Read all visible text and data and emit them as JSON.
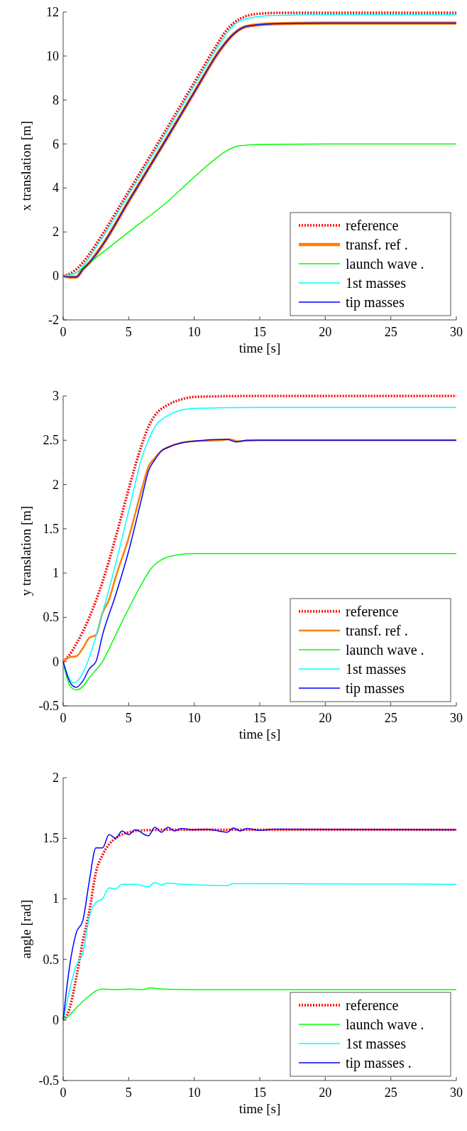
{
  "chart_data": [
    {
      "type": "line",
      "xlabel": "time [s]",
      "ylabel": "x translation [m]",
      "xlim": [
        0,
        30
      ],
      "ylim": [
        -2,
        12
      ],
      "xticks": [
        0,
        5,
        10,
        15,
        20,
        25,
        30
      ],
      "yticks": [
        -2,
        0,
        2,
        4,
        6,
        8,
        10,
        12
      ],
      "grid": false,
      "legend": "bottom right",
      "series": [
        {
          "name": "reference",
          "color": "#ff0000",
          "line_style": "dotted",
          "x": [
            0,
            0.5,
            1,
            2,
            3,
            5,
            8,
            10,
            11.5,
            12.5,
            13.5,
            15,
            17,
            20,
            30
          ],
          "values": [
            0,
            0.1,
            0.3,
            1.0,
            1.9,
            3.85,
            6.8,
            8.8,
            10.3,
            11.2,
            11.7,
            11.93,
            11.97,
            11.97,
            11.97
          ]
        },
        {
          "name": "transf. ref .",
          "color": "#ff7f00",
          "line_style": "solid",
          "x": [
            0,
            0.5,
            1,
            1.5,
            2,
            3,
            5,
            8,
            10,
            12,
            13,
            14,
            16,
            20,
            30
          ],
          "values": [
            0,
            -0.05,
            -0.05,
            0.3,
            0.6,
            1.4,
            3.4,
            6.35,
            8.35,
            10.3,
            11.0,
            11.35,
            11.47,
            11.5,
            11.5
          ]
        },
        {
          "name": "launch wave .",
          "color": "#00ff00",
          "line_style": "solid",
          "x": [
            0,
            1,
            2,
            5,
            8,
            10,
            12,
            12.5,
            13.5,
            15,
            20,
            30
          ],
          "values": [
            0,
            0.15,
            0.6,
            2.0,
            3.4,
            4.5,
            5.5,
            5.7,
            5.92,
            5.98,
            6.0,
            6.0
          ]
        },
        {
          "name": "1st masses",
          "color": "#00ffff",
          "line_style": "solid",
          "x": [
            0,
            1,
            2,
            3,
            5,
            8,
            10,
            12,
            13,
            14,
            16,
            20,
            30
          ],
          "values": [
            0,
            0.15,
            0.85,
            1.75,
            3.7,
            6.65,
            8.65,
            10.6,
            11.4,
            11.7,
            11.85,
            11.88,
            11.88
          ]
        },
        {
          "name": "tip masses",
          "color": "#0000ff",
          "line_style": "solid",
          "x": [
            0,
            0.5,
            1,
            1.5,
            2,
            3,
            5,
            8,
            10,
            12,
            13,
            14,
            16,
            20,
            30
          ],
          "values": [
            0,
            -0.05,
            -0.05,
            0.3,
            0.6,
            1.4,
            3.4,
            6.35,
            8.35,
            10.3,
            11.0,
            11.35,
            11.47,
            11.5,
            11.5
          ]
        }
      ]
    },
    {
      "type": "line",
      "xlabel": "time [s]",
      "ylabel": "y translation [m]",
      "xlim": [
        0,
        30
      ],
      "ylim": [
        -0.5,
        3
      ],
      "xticks": [
        0,
        5,
        10,
        15,
        20,
        25,
        30
      ],
      "yticks": [
        -0.5,
        0,
        0.5,
        1,
        1.5,
        2,
        2.5,
        3
      ],
      "grid": false,
      "legend": "bottom right",
      "series": [
        {
          "name": "reference",
          "color": "#ff0000",
          "line_style": "dotted",
          "x": [
            0,
            0.5,
            1,
            2,
            3,
            4,
            5,
            6,
            6.5,
            7,
            8,
            9,
            10,
            15,
            30
          ],
          "values": [
            0,
            0.08,
            0.2,
            0.5,
            0.9,
            1.4,
            1.95,
            2.45,
            2.65,
            2.78,
            2.9,
            2.96,
            2.99,
            3.0,
            3.0
          ]
        },
        {
          "name": "transf. ref .",
          "color": "#ff7f00",
          "line_style": "solid",
          "x": [
            0,
            0.5,
            1,
            1.5,
            2,
            2.5,
            3,
            3.5,
            4,
            5,
            6,
            6.5,
            7,
            7.5,
            8,
            9,
            10,
            12,
            12.7,
            13.3,
            15,
            30
          ],
          "values": [
            0,
            0.05,
            0.06,
            0.15,
            0.27,
            0.3,
            0.55,
            0.7,
            0.95,
            1.4,
            1.95,
            2.2,
            2.3,
            2.38,
            2.42,
            2.47,
            2.49,
            2.5,
            2.51,
            2.49,
            2.5,
            2.5
          ]
        },
        {
          "name": "launch wave .",
          "color": "#00ff00",
          "line_style": "solid",
          "x": [
            0,
            0.5,
            1,
            1.5,
            2,
            3,
            4,
            5,
            6,
            6.7,
            7.5,
            8.5,
            10,
            30
          ],
          "values": [
            0,
            -0.27,
            -0.32,
            -0.28,
            -0.18,
            0.0,
            0.3,
            0.6,
            0.88,
            1.05,
            1.15,
            1.2,
            1.22,
            1.22
          ]
        },
        {
          "name": "1st masses",
          "color": "#00ffff",
          "line_style": "solid",
          "x": [
            0,
            0.5,
            0.8,
            1.2,
            2,
            3,
            4,
            5,
            6,
            6.5,
            7,
            8,
            9,
            10,
            15,
            30
          ],
          "values": [
            0,
            -0.2,
            -0.24,
            -0.2,
            0.05,
            0.55,
            1.1,
            1.7,
            2.3,
            2.5,
            2.65,
            2.78,
            2.84,
            2.86,
            2.87,
            2.87
          ]
        },
        {
          "name": "tip masses",
          "color": "#0000ff",
          "line_style": "solid",
          "x": [
            0,
            0.3,
            0.7,
            1,
            1.5,
            2,
            2.5,
            3,
            4,
            5,
            6,
            6.5,
            7,
            7.5,
            8,
            9,
            10,
            12.5,
            13.2,
            14,
            30
          ],
          "values": [
            0,
            -0.15,
            -0.27,
            -0.29,
            -0.22,
            -0.08,
            0.0,
            0.3,
            0.75,
            1.25,
            1.85,
            2.15,
            2.28,
            2.38,
            2.42,
            2.47,
            2.49,
            2.51,
            2.48,
            2.5,
            2.5
          ]
        }
      ]
    },
    {
      "type": "line",
      "xlabel": "time [s]",
      "ylabel": "angle [rad]",
      "xlim": [
        0,
        30
      ],
      "ylim": [
        -0.5,
        2
      ],
      "xticks": [
        0,
        5,
        10,
        15,
        20,
        25,
        30
      ],
      "yticks": [
        -0.5,
        0,
        0.5,
        1,
        1.5,
        2
      ],
      "grid": false,
      "legend": "bottom right",
      "series": [
        {
          "name": "reference",
          "color": "#ff0000",
          "line_style": "dotted",
          "x": [
            0,
            0.5,
            1,
            1.5,
            2,
            2.5,
            3,
            3.5,
            4,
            5,
            6,
            8,
            30
          ],
          "values": [
            0,
            0.1,
            0.35,
            0.65,
            0.9,
            1.22,
            1.36,
            1.45,
            1.5,
            1.55,
            1.565,
            1.57,
            1.57
          ]
        },
        {
          "name": "launch wave .",
          "color": "#00ff00",
          "line_style": "solid",
          "x": [
            0,
            0.5,
            1,
            2,
            2.5,
            3,
            4,
            5,
            6,
            6.7,
            7.5,
            10,
            30
          ],
          "values": [
            0,
            0.04,
            0.1,
            0.2,
            0.24,
            0.255,
            0.25,
            0.255,
            0.25,
            0.265,
            0.255,
            0.25,
            0.25
          ]
        },
        {
          "name": "1st masses",
          "color": "#00ffff",
          "line_style": "solid",
          "x": [
            0,
            0.5,
            1,
            1.5,
            2,
            2.5,
            3,
            3.5,
            4,
            4.5,
            5.5,
            6.5,
            7,
            7.5,
            8,
            9,
            12.5,
            13,
            30
          ],
          "values": [
            0,
            0.25,
            0.45,
            0.55,
            0.85,
            0.97,
            1.0,
            1.09,
            1.08,
            1.12,
            1.12,
            1.1,
            1.135,
            1.115,
            1.13,
            1.12,
            1.11,
            1.125,
            1.12
          ]
        },
        {
          "name": "tip masses .",
          "color": "#0000ff",
          "line_style": "solid",
          "x": [
            0,
            0.5,
            1,
            1.5,
            2,
            2.5,
            3,
            3.5,
            4,
            4.5,
            5,
            5.5,
            6.5,
            7,
            7.5,
            8,
            8.5,
            9,
            10,
            11,
            12.5,
            13,
            13.5,
            14,
            15,
            16,
            30
          ],
          "values": [
            0,
            0.45,
            0.72,
            0.82,
            1.15,
            1.42,
            1.42,
            1.53,
            1.5,
            1.56,
            1.53,
            1.57,
            1.52,
            1.59,
            1.55,
            1.59,
            1.56,
            1.58,
            1.57,
            1.575,
            1.55,
            1.585,
            1.56,
            1.58,
            1.565,
            1.575,
            1.57
          ]
        }
      ]
    }
  ]
}
